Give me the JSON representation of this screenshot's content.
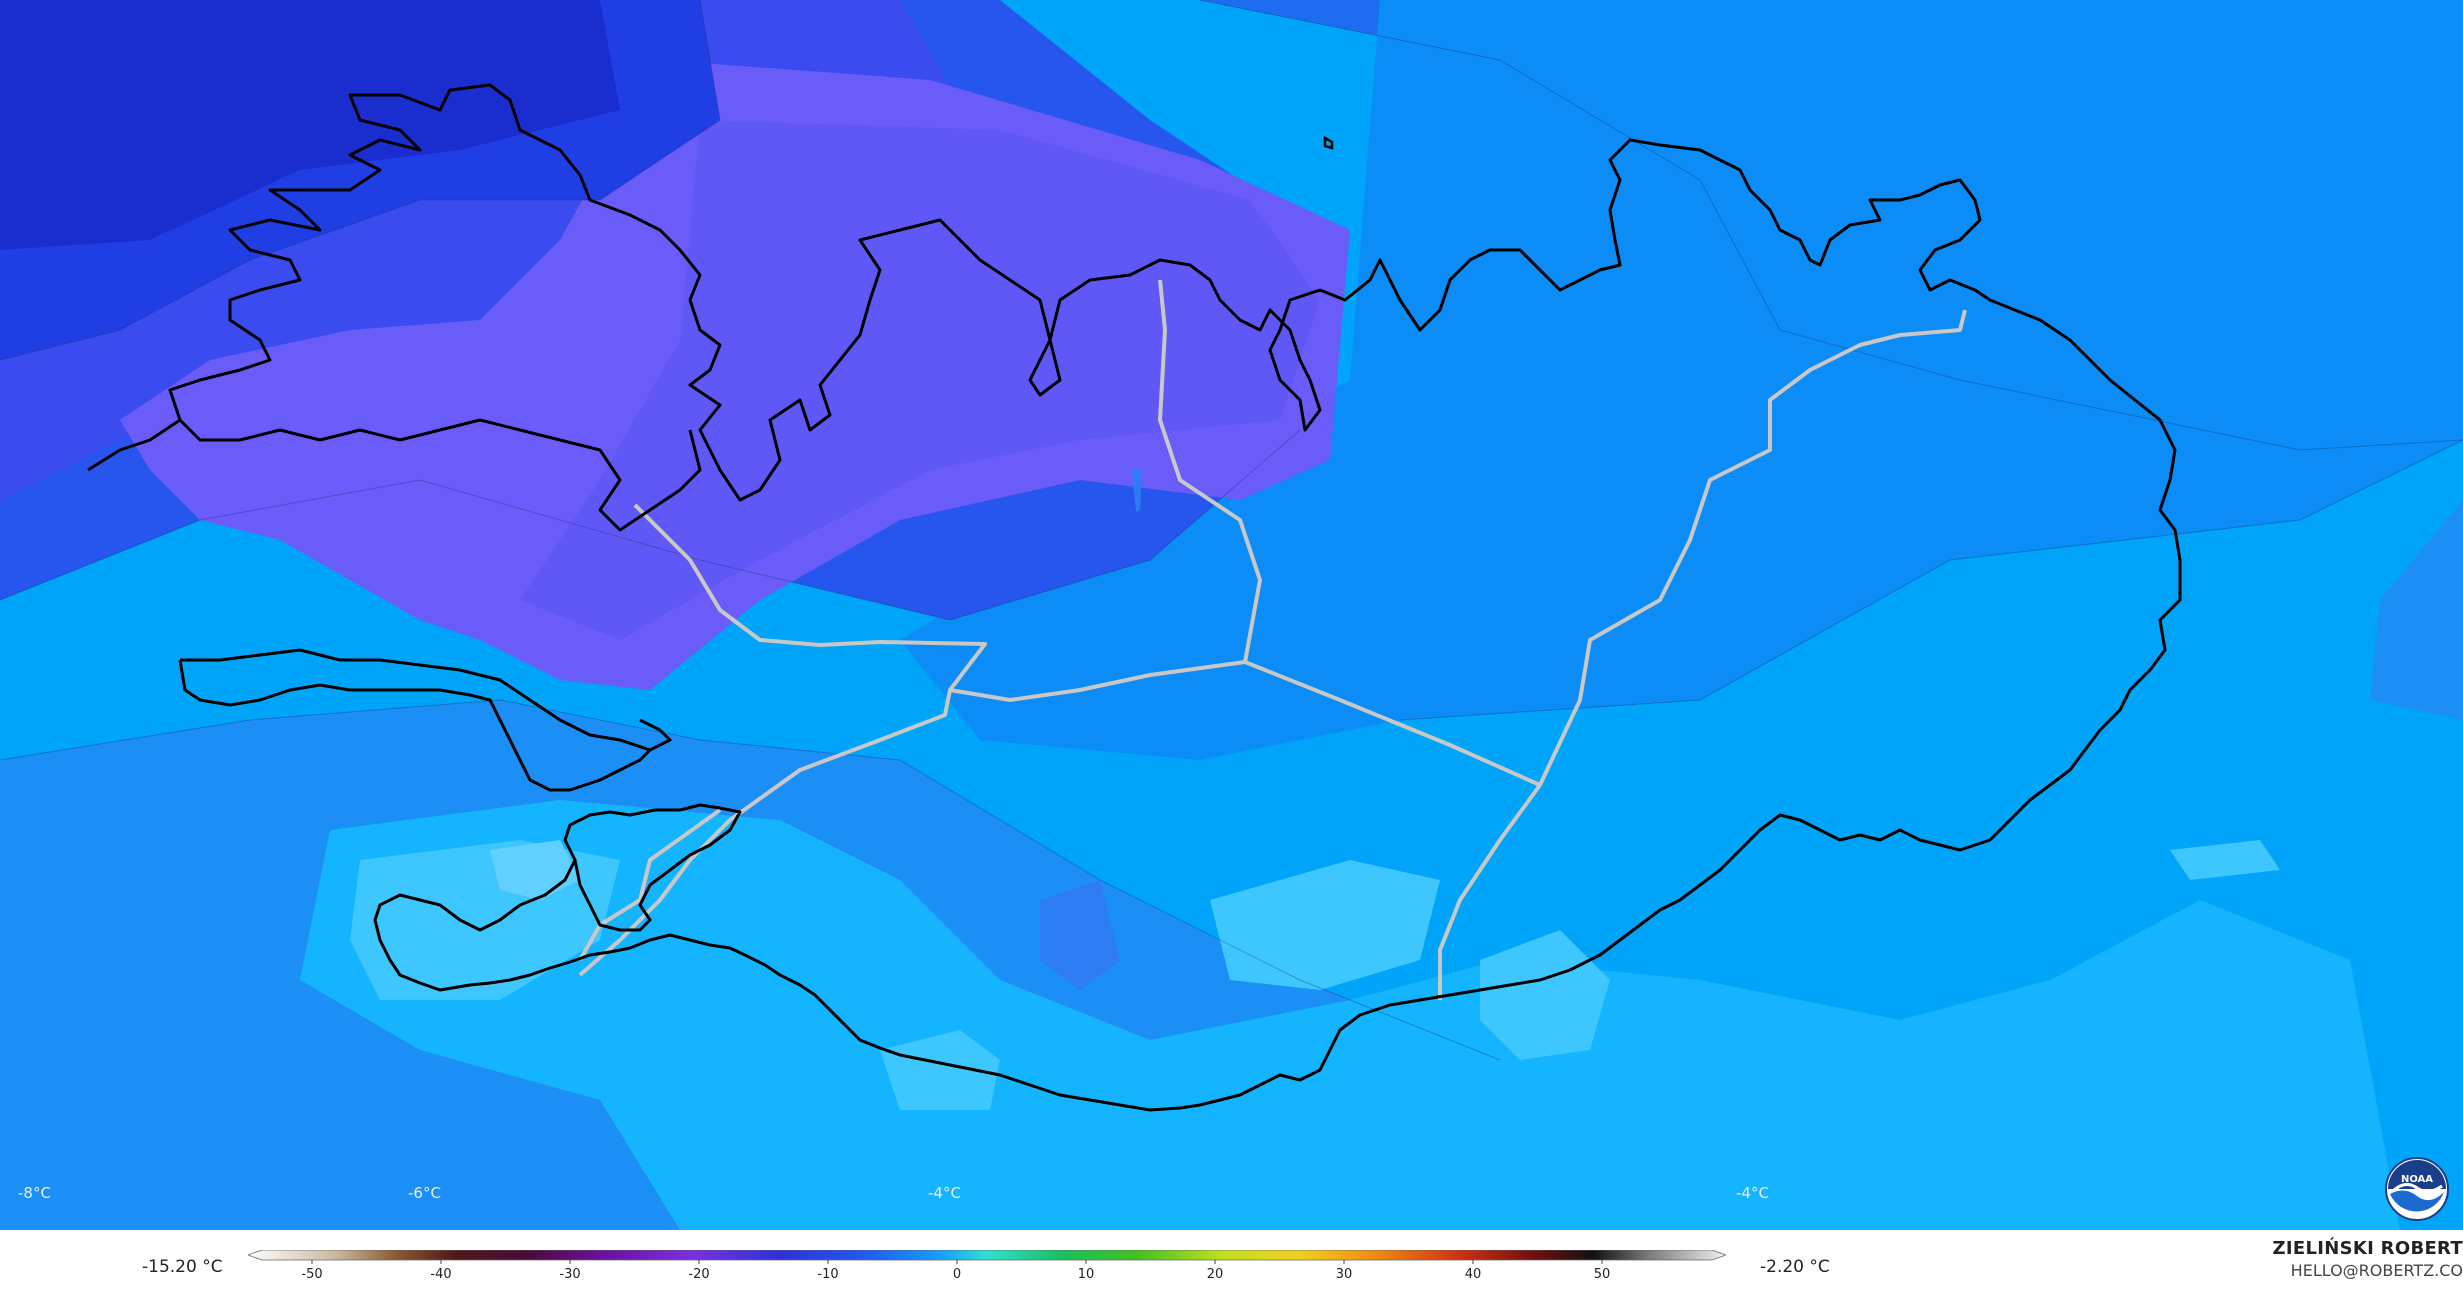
{
  "map": {
    "point_labels": [
      "-8°C",
      "-6°C",
      "-4°C",
      "-4°C"
    ]
  },
  "legend": {
    "min_label": "-15.20 °C",
    "max_label": "-2.20 °C",
    "ticks": [
      "-50",
      "-40",
      "-30",
      "-20",
      "-10",
      "0",
      "10",
      "20",
      "30",
      "40",
      "50"
    ]
  },
  "branding": {
    "name": "ZIELIŃSKI ROBERT",
    "email": "HELLO@ROBERTZ.CO",
    "logo_text": "NOAA"
  },
  "colors": {
    "coldest": "#1a2ed0",
    "purple": "#6a5cf5",
    "mid_blue": "#2d7cf3",
    "light_blue": "#00a8fb",
    "lightest": "#3ec6ff",
    "coast": "#000000",
    "roads": "#c8c8c8"
  }
}
